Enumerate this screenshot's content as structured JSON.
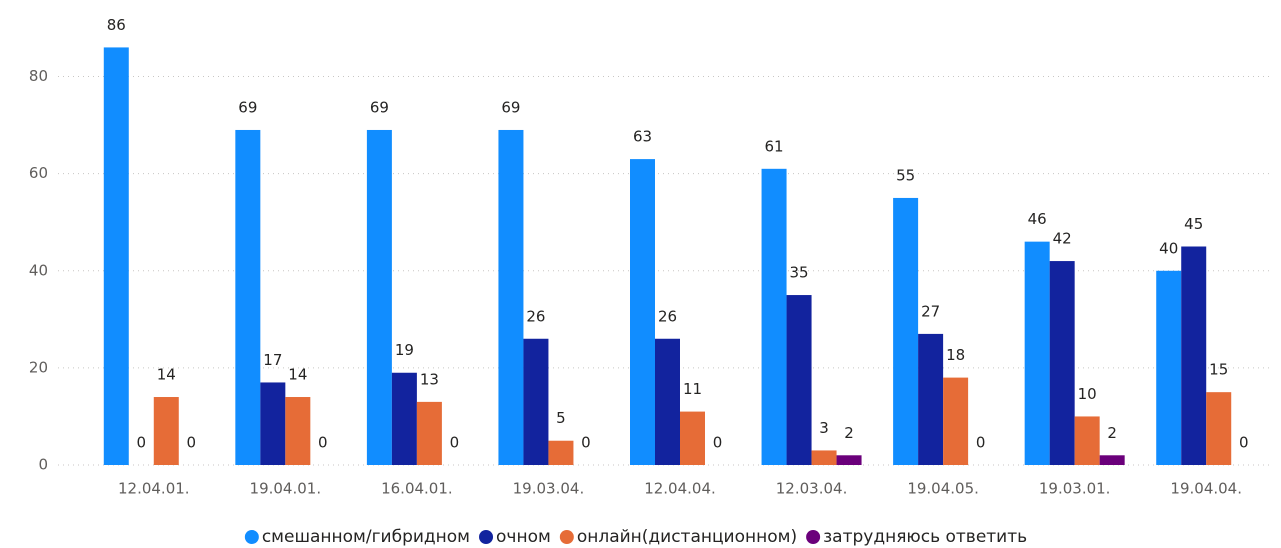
{
  "chart_data": {
    "type": "bar",
    "categories": [
      "12.04.01.",
      "19.04.01.",
      "16.04.01.",
      "19.03.04.",
      "12.04.04.",
      "12.03.04.",
      "19.04.05.",
      "19.03.01.",
      "19.04.04."
    ],
    "series": [
      {
        "name": "смешанном/гибридном",
        "color": "#118dff",
        "values": [
          86,
          69,
          69,
          69,
          63,
          61,
          55,
          46,
          40
        ]
      },
      {
        "name": "очном",
        "color": "#12239e",
        "values": [
          0,
          17,
          19,
          26,
          26,
          35,
          27,
          42,
          45
        ]
      },
      {
        "name": "онлайн(дистанционном)",
        "color": "#e66c37",
        "values": [
          14,
          14,
          13,
          5,
          11,
          3,
          18,
          10,
          15
        ]
      },
      {
        "name": "затрудняюсь ответить",
        "color": "#6b007b",
        "values": [
          0,
          0,
          0,
          0,
          0,
          2,
          0,
          2,
          0
        ]
      }
    ],
    "ylim": [
      0,
      90
    ],
    "yticks": [
      0,
      20,
      40,
      60,
      80
    ],
    "grid": true,
    "legend": "bottom"
  }
}
